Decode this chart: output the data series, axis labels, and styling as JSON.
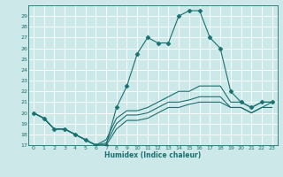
{
  "title": "",
  "xlabel": "Humidex (Indice chaleur)",
  "xlim": [
    -0.5,
    23.5
  ],
  "ylim": [
    17,
    30
  ],
  "yticks": [
    17,
    18,
    19,
    20,
    21,
    22,
    23,
    24,
    25,
    26,
    27,
    28,
    29
  ],
  "xticks": [
    0,
    1,
    2,
    3,
    4,
    5,
    6,
    7,
    8,
    9,
    10,
    11,
    12,
    13,
    14,
    15,
    16,
    17,
    18,
    19,
    20,
    21,
    22,
    23
  ],
  "background_color": "#cce8e8",
  "line_color": "#1a7070",
  "grid_color": "#ffffff",
  "series": [
    {
      "x": [
        0,
        1,
        2,
        3,
        4,
        5,
        6,
        7,
        8,
        9,
        10,
        11,
        12,
        13,
        14,
        15,
        16,
        17,
        18,
        19,
        20,
        21,
        22,
        23
      ],
      "y": [
        20.0,
        19.5,
        18.5,
        18.5,
        18.0,
        17.5,
        17.0,
        17.0,
        20.5,
        22.5,
        25.5,
        27.0,
        26.5,
        26.5,
        29.0,
        29.5,
        29.5,
        27.0,
        26.0,
        22.0,
        21.0,
        20.5,
        21.0,
        21.0
      ],
      "marker": "D",
      "markersize": 2.5
    },
    {
      "x": [
        0,
        1,
        2,
        3,
        4,
        5,
        6,
        7,
        8,
        9,
        10,
        11,
        12,
        13,
        14,
        15,
        16,
        17,
        18,
        19,
        20,
        21,
        22,
        23
      ],
      "y": [
        20.0,
        19.5,
        18.5,
        18.5,
        18.0,
        17.5,
        17.0,
        17.5,
        19.5,
        20.2,
        20.2,
        20.5,
        21.0,
        21.5,
        22.0,
        22.0,
        22.5,
        22.5,
        22.5,
        21.0,
        21.0,
        20.5,
        21.0,
        21.0
      ],
      "marker": null,
      "markersize": 0
    },
    {
      "x": [
        0,
        1,
        2,
        3,
        4,
        5,
        6,
        7,
        8,
        9,
        10,
        11,
        12,
        13,
        14,
        15,
        16,
        17,
        18,
        19,
        20,
        21,
        22,
        23
      ],
      "y": [
        20.0,
        19.5,
        18.5,
        18.5,
        18.0,
        17.5,
        17.0,
        17.2,
        19.0,
        19.8,
        19.8,
        20.0,
        20.5,
        21.0,
        21.0,
        21.2,
        21.5,
        21.5,
        21.5,
        20.5,
        20.5,
        20.0,
        20.5,
        21.0
      ],
      "marker": null,
      "markersize": 0
    },
    {
      "x": [
        0,
        1,
        2,
        3,
        4,
        5,
        6,
        7,
        8,
        9,
        10,
        11,
        12,
        13,
        14,
        15,
        16,
        17,
        18,
        19,
        20,
        21,
        22,
        23
      ],
      "y": [
        20.0,
        19.5,
        18.5,
        18.5,
        18.0,
        17.5,
        17.0,
        17.0,
        18.5,
        19.3,
        19.3,
        19.5,
        20.0,
        20.5,
        20.5,
        20.8,
        21.0,
        21.0,
        21.0,
        20.5,
        20.5,
        20.0,
        20.5,
        20.5
      ],
      "marker": null,
      "markersize": 0
    }
  ]
}
